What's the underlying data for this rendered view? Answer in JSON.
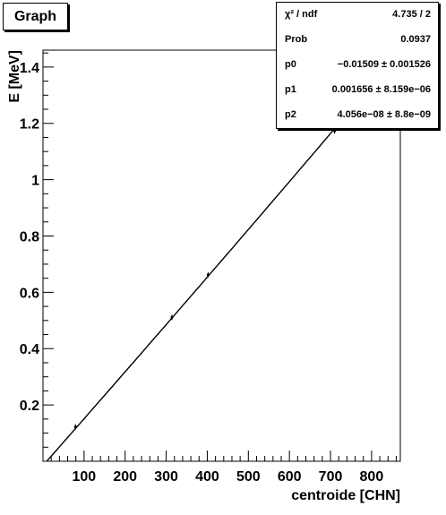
{
  "chart_data": {
    "type": "line",
    "title": "Graph",
    "xlabel": "centroide [CHN]",
    "ylabel": "E [MeV]",
    "xlim": [
      0,
      870
    ],
    "ylim": [
      0,
      1.46
    ],
    "x_ticks": [
      100,
      200,
      300,
      400,
      500,
      600,
      700,
      800
    ],
    "x_tick_labels": [
      "100",
      "200",
      "300",
      "400",
      "500",
      "600",
      "700",
      "800"
    ],
    "y_ticks": [
      0.2,
      0.4,
      0.6,
      0.8,
      1.0,
      1.2,
      1.4
    ],
    "y_tick_labels": [
      "0.2",
      "0.4",
      "0.6",
      "0.8",
      "1",
      "1.2",
      "1.4"
    ],
    "grid": false,
    "series": [
      {
        "name": "",
        "x": [
          79,
          314,
          402,
          710
        ],
        "y": [
          0.122,
          0.511,
          0.662,
          1.173
        ]
      }
    ],
    "fit": {
      "p0": -0.01509,
      "p1": 0.001656,
      "p2": 4.056e-08
    },
    "stats": [
      {
        "label": "χ² / ndf",
        "value": "4.735 / 2"
      },
      {
        "label": "Prob",
        "value": "0.0937"
      },
      {
        "label": "p0",
        "value": "−0.01509 ± 0.001526"
      },
      {
        "label": "p1",
        "value": "0.001656 ± 8.159e−06"
      },
      {
        "label": "p2",
        "value": "4.056e−08 ± 8.8e−09"
      }
    ]
  }
}
